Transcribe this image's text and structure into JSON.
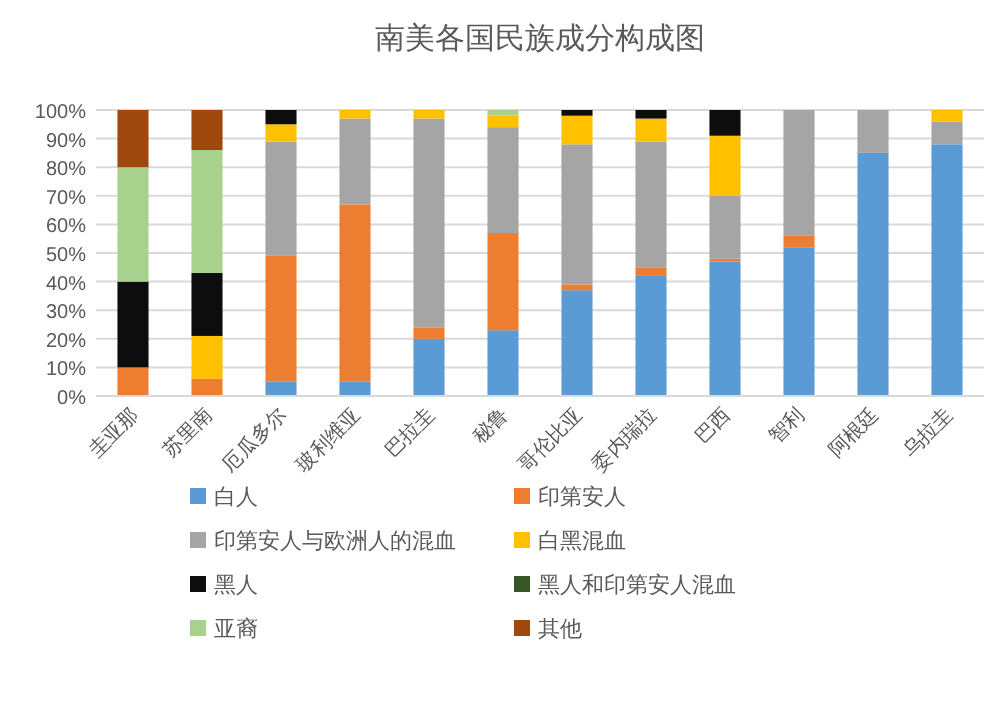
{
  "chart_data": {
    "type": "bar",
    "stacked": true,
    "title": "南美各国民族成分构成图",
    "categories": [
      "圭亚那",
      "苏里南",
      "厄瓜多尔",
      "玻利维亚",
      "巴拉圭",
      "秘鲁",
      "哥伦比亚",
      "委内瑞拉",
      "巴西",
      "智利",
      "阿根廷",
      "乌拉圭"
    ],
    "series": [
      {
        "name": "白人",
        "color": "#5b9bd5",
        "values": [
          0,
          0,
          5,
          5,
          20,
          23,
          37,
          42,
          47,
          52,
          85,
          88
        ]
      },
      {
        "name": "印第安人",
        "color": "#ed7d31",
        "values": [
          10,
          6,
          44,
          62,
          4,
          34,
          2,
          3,
          1,
          4,
          0,
          0
        ]
      },
      {
        "name": "印第安人与欧洲人的混血",
        "color": "#a5a5a5",
        "values": [
          0,
          0,
          40,
          30,
          73,
          37,
          49,
          44,
          22,
          44,
          15,
          8
        ]
      },
      {
        "name": "白黑混血",
        "color": "#ffc000",
        "values": [
          0,
          15,
          6,
          3,
          3,
          4,
          10,
          8,
          21,
          0,
          0,
          4
        ]
      },
      {
        "name": "黑人",
        "color": "#0d0d0d",
        "values": [
          30,
          22,
          5,
          0,
          0,
          0,
          2,
          3,
          9,
          0,
          0,
          0
        ]
      },
      {
        "name": "黑人和印第安人混血",
        "color": "#375623",
        "values": [
          0,
          0,
          0,
          0,
          0,
          0,
          0,
          0,
          0,
          0,
          0,
          0
        ]
      },
      {
        "name": "亚裔",
        "color": "#a9d18e",
        "values": [
          40,
          43,
          0,
          0,
          0,
          2,
          0,
          0,
          0,
          0,
          0,
          0
        ]
      },
      {
        "name": "其他",
        "color": "#9e480e",
        "values": [
          20,
          14,
          0,
          0,
          0,
          0,
          0,
          0,
          0,
          0,
          0,
          0
        ]
      }
    ],
    "ylim": [
      0,
      100
    ],
    "yticks": [
      {
        "value": 0,
        "label": "0%"
      },
      {
        "value": 10,
        "label": "10%"
      },
      {
        "value": 20,
        "label": "20%"
      },
      {
        "value": 30,
        "label": "30%"
      },
      {
        "value": 40,
        "label": "40%"
      },
      {
        "value": 50,
        "label": "50%"
      },
      {
        "value": 60,
        "label": "60%"
      },
      {
        "value": 70,
        "label": "70%"
      },
      {
        "value": 80,
        "label": "80%"
      },
      {
        "value": 90,
        "label": "90%"
      },
      {
        "value": 100,
        "label": "100%"
      }
    ],
    "grid": "y",
    "legend": "bottom"
  }
}
